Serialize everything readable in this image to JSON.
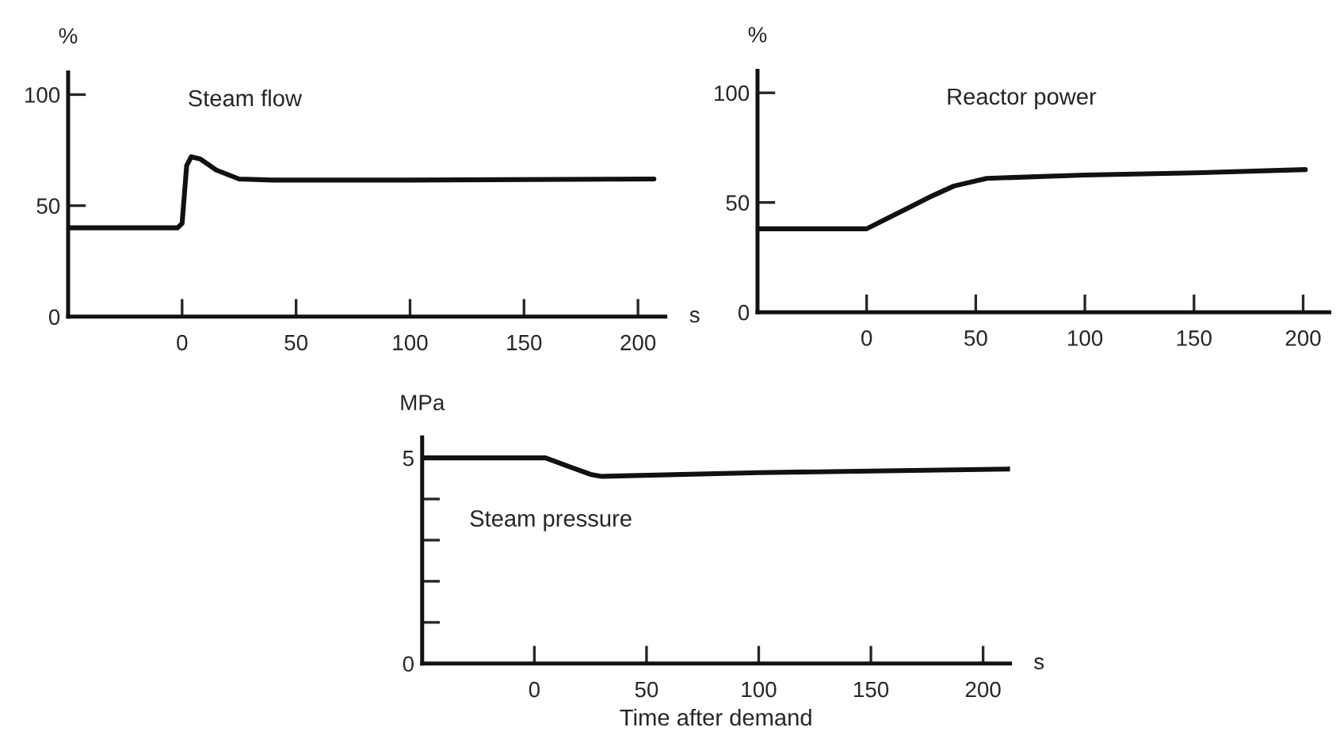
{
  "chart_data": [
    {
      "type": "line",
      "ylabel": "%",
      "xlabel": "s",
      "xlim": [
        -50,
        212
      ],
      "ylim": [
        0,
        110
      ],
      "xticks": [
        0,
        50,
        100,
        150,
        200
      ],
      "yticks": [
        0,
        50,
        100
      ],
      "grid": false,
      "legend": false,
      "series": [
        {
          "name": "Steam flow",
          "color": "#111111",
          "x": [
            -50,
            -2,
            0,
            1,
            2,
            4,
            8,
            15,
            25,
            40,
            100,
            207
          ],
          "values": [
            40,
            40,
            42,
            55,
            68,
            72,
            71,
            66,
            62,
            61.5,
            61.5,
            62
          ]
        }
      ]
    },
    {
      "type": "line",
      "ylabel": "%",
      "xlim": [
        -50,
        212
      ],
      "ylim": [
        0,
        110
      ],
      "xticks": [
        0,
        50,
        100,
        150,
        {
          "value": 200,
          "label": "200"
        }
      ],
      "yticks": [
        0,
        50,
        100
      ],
      "grid": false,
      "legend": false,
      "series": [
        {
          "name": "Reactor power",
          "color": "#111111",
          "x": [
            -50,
            0,
            10,
            20,
            30,
            40,
            55,
            100,
            150,
            201
          ],
          "values": [
            38,
            38,
            43,
            48,
            53,
            57.5,
            61,
            62.5,
            63.5,
            65
          ]
        }
      ]
    },
    {
      "type": "line",
      "ylabel": "MPa",
      "xlabel": "s",
      "xlim": [
        -50,
        212
      ],
      "ylim": [
        0,
        5.5
      ],
      "xticks": [
        0,
        50,
        100,
        150,
        200
      ],
      "yticks": [
        0,
        {
          "value": 1,
          "label": null
        },
        {
          "value": 2,
          "label": null
        },
        {
          "value": 3,
          "label": null
        },
        {
          "value": 4,
          "label": null
        },
        5
      ],
      "grid": false,
      "legend": false,
      "annotations": [
        "Time after demand"
      ],
      "series": [
        {
          "name": "Steam pressure",
          "color": "#111111",
          "x": [
            -50,
            5,
            15,
            25,
            30,
            100,
            150,
            212
          ],
          "values": [
            5.0,
            5.0,
            4.8,
            4.6,
            4.55,
            4.64,
            4.68,
            4.73
          ]
        }
      ]
    }
  ]
}
